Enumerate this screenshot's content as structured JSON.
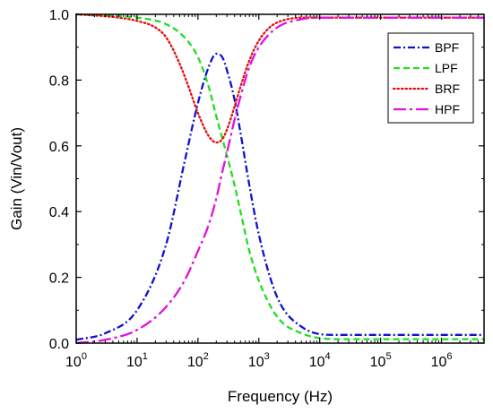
{
  "chart_data": {
    "type": "line",
    "xlabel": "Frequency (Hz)",
    "ylabel": "Gain (Vin/Vout)",
    "xscale": "log",
    "xlim": [
      1,
      5000000
    ],
    "ylim": [
      0,
      1.0
    ],
    "x_tick_values": [
      1,
      10,
      100,
      1000,
      10000,
      100000,
      1000000
    ],
    "x_tick_labels": [
      {
        "base": "10",
        "exp": "0"
      },
      {
        "base": "10",
        "exp": "1"
      },
      {
        "base": "10",
        "exp": "2"
      },
      {
        "base": "10",
        "exp": "3"
      },
      {
        "base": "10",
        "exp": "4"
      },
      {
        "base": "10",
        "exp": "5"
      },
      {
        "base": "10",
        "exp": "6"
      }
    ],
    "y_tick_values": [
      0.0,
      0.2,
      0.4,
      0.6,
      0.8,
      1.0
    ],
    "y_tick_labels": [
      "0.0",
      "0.2",
      "0.4",
      "0.6",
      "0.8",
      "1.0"
    ],
    "grid": false,
    "legend_position": "top-right",
    "series": [
      {
        "name": "BPF",
        "color": "#1010d0",
        "dash": "dashdot",
        "x": [
          1,
          3,
          10,
          30,
          60,
          100,
          150,
          200,
          250,
          300,
          400,
          500,
          700,
          1000,
          2000,
          5000,
          20000,
          5000000
        ],
        "y": [
          0.01,
          0.03,
          0.1,
          0.3,
          0.55,
          0.73,
          0.84,
          0.88,
          0.87,
          0.83,
          0.74,
          0.64,
          0.48,
          0.33,
          0.14,
          0.05,
          0.025,
          0.025
        ]
      },
      {
        "name": "LPF",
        "color": "#22dd22",
        "dash": "dashed",
        "x": [
          1,
          10,
          30,
          60,
          100,
          150,
          200,
          300,
          400,
          500,
          700,
          1000,
          2000,
          5000,
          20000,
          5000000
        ],
        "y": [
          1.0,
          0.99,
          0.97,
          0.93,
          0.87,
          0.78,
          0.69,
          0.57,
          0.48,
          0.4,
          0.28,
          0.19,
          0.08,
          0.03,
          0.012,
          0.012
        ]
      },
      {
        "name": "BRF",
        "color": "#e01010",
        "dash": "dotted",
        "x": [
          1,
          5,
          10,
          20,
          30,
          50,
          70,
          100,
          150,
          200,
          250,
          300,
          400,
          500,
          700,
          1000,
          1500,
          2000,
          5000,
          10000,
          5000000
        ],
        "y": [
          1.0,
          0.99,
          0.98,
          0.96,
          0.93,
          0.85,
          0.78,
          0.7,
          0.63,
          0.61,
          0.62,
          0.65,
          0.72,
          0.78,
          0.86,
          0.92,
          0.96,
          0.975,
          0.99,
          0.99,
          0.99
        ]
      },
      {
        "name": "HPF",
        "color": "#e010e0",
        "dash": "dashdotlong",
        "x": [
          1,
          3,
          10,
          30,
          60,
          100,
          150,
          200,
          250,
          300,
          400,
          500,
          700,
          1000,
          2000,
          5000,
          10000,
          5000000
        ],
        "y": [
          0.0,
          0.01,
          0.04,
          0.11,
          0.19,
          0.28,
          0.36,
          0.44,
          0.52,
          0.58,
          0.68,
          0.75,
          0.84,
          0.9,
          0.96,
          0.985,
          0.99,
          0.99
        ]
      }
    ]
  }
}
